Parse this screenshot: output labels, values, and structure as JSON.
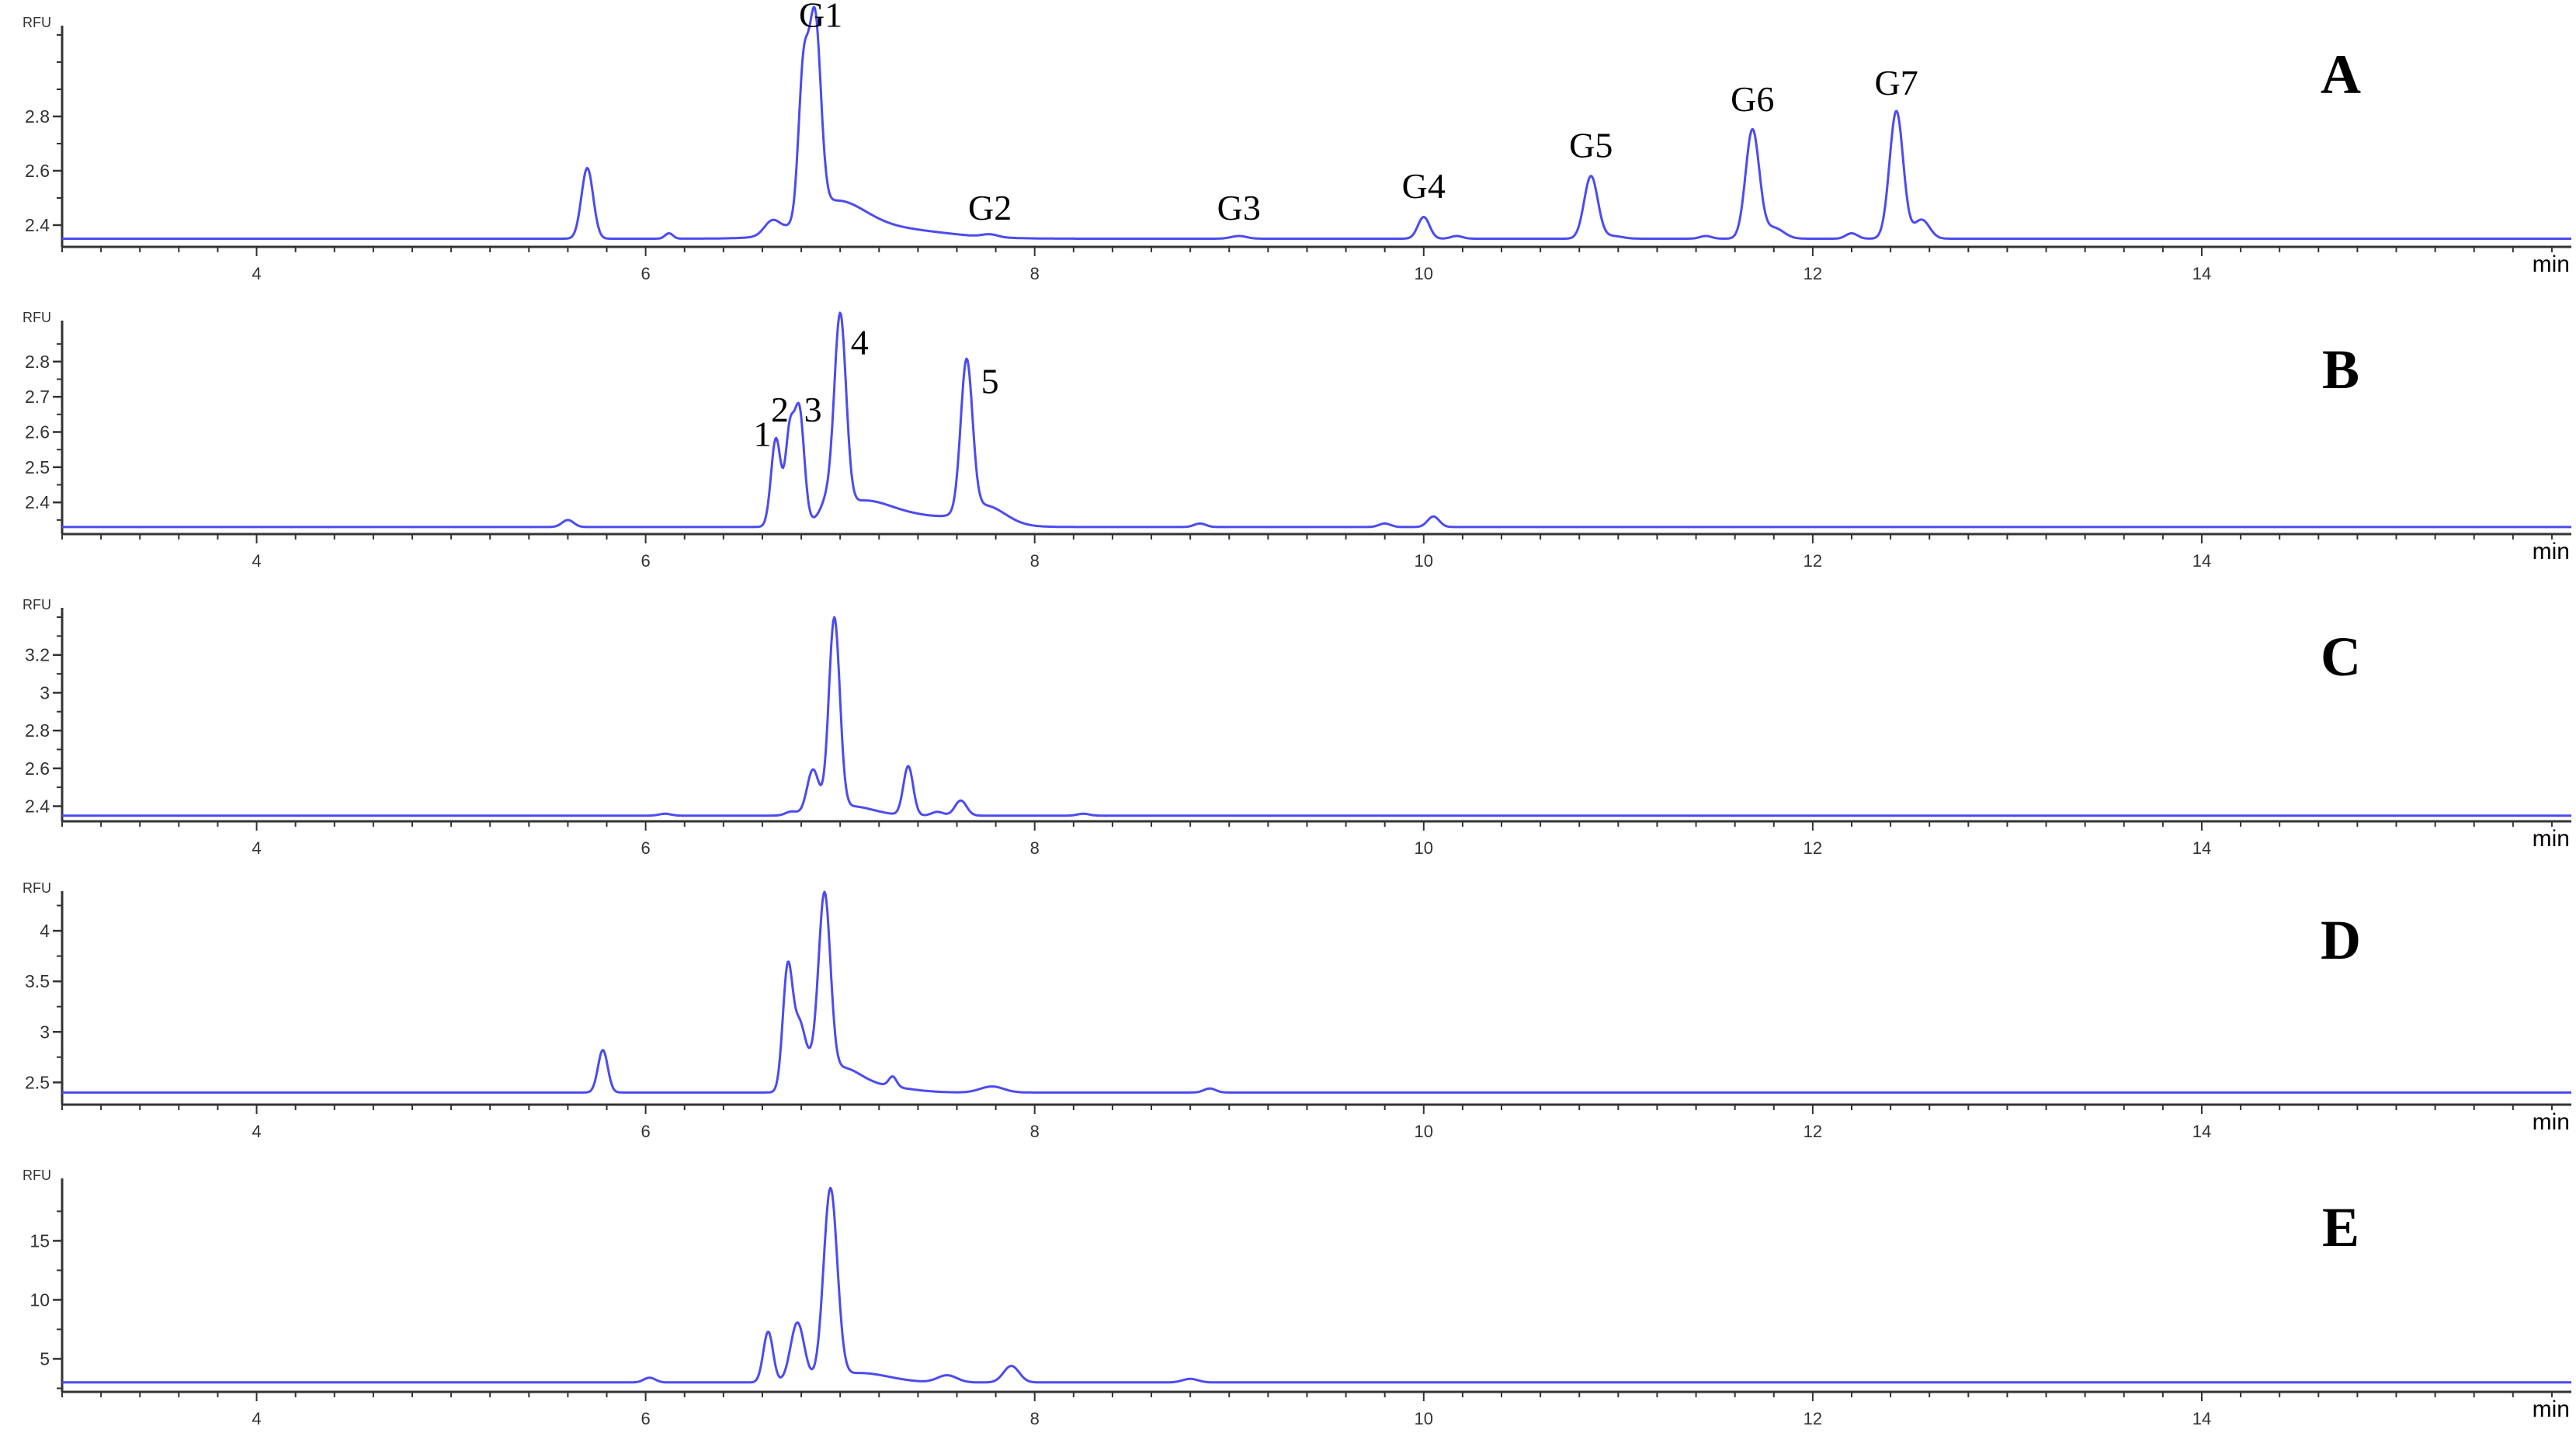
{
  "figure": {
    "line_color": "#4B4BF0",
    "axis_color": "#333333",
    "x_unit": "min",
    "y_unit": "RFU"
  },
  "chart_data": [
    {
      "panel": "A",
      "type": "line",
      "xlim": [
        3.0,
        15.9
      ],
      "ylim": [
        2.32,
        3.1
      ],
      "x_ticks": [
        4,
        6,
        8,
        10,
        12,
        14
      ],
      "y_ticks": [
        2.4,
        2.6,
        2.8
      ],
      "baseline": 2.35,
      "peaks": [
        {
          "x": 5.7,
          "y": 2.61,
          "w": 0.03
        },
        {
          "x": 6.12,
          "y": 2.37,
          "w": 0.02
        },
        {
          "x": 6.65,
          "y": 2.4,
          "w": 0.04
        },
        {
          "x": 6.81,
          "y": 2.86,
          "w": 0.025
        },
        {
          "x": 6.87,
          "y": 3.06,
          "w": 0.03
        },
        {
          "x": 6.97,
          "y": 2.46,
          "w": 0.15
        },
        {
          "x": 7.2,
          "y": 2.39,
          "w": 0.3
        },
        {
          "x": 7.77,
          "y": 2.36,
          "w": 0.04
        },
        {
          "x": 9.05,
          "y": 2.36,
          "w": 0.04
        },
        {
          "x": 10.0,
          "y": 2.43,
          "w": 0.03
        },
        {
          "x": 10.17,
          "y": 2.36,
          "w": 0.03
        },
        {
          "x": 10.86,
          "y": 2.58,
          "w": 0.035
        },
        {
          "x": 10.97,
          "y": 2.36,
          "w": 0.05
        },
        {
          "x": 11.45,
          "y": 2.36,
          "w": 0.03
        },
        {
          "x": 11.69,
          "y": 2.75,
          "w": 0.035
        },
        {
          "x": 11.8,
          "y": 2.39,
          "w": 0.05
        },
        {
          "x": 12.2,
          "y": 2.37,
          "w": 0.03
        },
        {
          "x": 12.43,
          "y": 2.82,
          "w": 0.035
        },
        {
          "x": 12.56,
          "y": 2.42,
          "w": 0.04
        }
      ],
      "annotations": [
        {
          "text": "G1",
          "x": 6.9,
          "y": 3.13
        },
        {
          "text": "G2",
          "x": 7.77,
          "y": 2.42
        },
        {
          "text": "G3",
          "x": 9.05,
          "y": 2.42
        },
        {
          "text": "G4",
          "x": 10.0,
          "y": 2.5
        },
        {
          "text": "G5",
          "x": 10.86,
          "y": 2.65
        },
        {
          "text": "G6",
          "x": 11.69,
          "y": 2.82
        },
        {
          "text": "G7",
          "x": 12.43,
          "y": 2.88
        }
      ],
      "panel_label": "A"
    },
    {
      "panel": "B",
      "type": "line",
      "xlim": [
        3.0,
        15.9
      ],
      "ylim": [
        2.31,
        2.89
      ],
      "x_ticks": [
        4,
        6,
        8,
        10,
        12,
        14
      ],
      "y_ticks": [
        2.4,
        2.5,
        2.6,
        2.7,
        2.8
      ],
      "baseline": 2.33,
      "peaks": [
        {
          "x": 5.6,
          "y": 2.35,
          "w": 0.03
        },
        {
          "x": 6.67,
          "y": 2.58,
          "w": 0.025
        },
        {
          "x": 6.74,
          "y": 2.58,
          "w": 0.022
        },
        {
          "x": 6.79,
          "y": 2.65,
          "w": 0.025
        },
        {
          "x": 6.93,
          "y": 2.37,
          "w": 0.03
        },
        {
          "x": 7.0,
          "y": 2.88,
          "w": 0.03
        },
        {
          "x": 7.1,
          "y": 2.39,
          "w": 0.15
        },
        {
          "x": 7.4,
          "y": 2.36,
          "w": 0.25
        },
        {
          "x": 7.65,
          "y": 2.76,
          "w": 0.03
        },
        {
          "x": 7.75,
          "y": 2.38,
          "w": 0.1
        },
        {
          "x": 8.85,
          "y": 2.34,
          "w": 0.03
        },
        {
          "x": 9.8,
          "y": 2.34,
          "w": 0.03
        },
        {
          "x": 10.05,
          "y": 2.36,
          "w": 0.03
        }
      ],
      "annotations": [
        {
          "text": "1",
          "x": 6.6,
          "y": 2.56
        },
        {
          "text": "2",
          "x": 6.69,
          "y": 2.63
        },
        {
          "text": "3",
          "x": 6.86,
          "y": 2.63
        },
        {
          "text": "4",
          "x": 7.1,
          "y": 2.82
        },
        {
          "text": "5",
          "x": 7.77,
          "y": 2.71
        }
      ],
      "panel_label": "B"
    },
    {
      "panel": "C",
      "type": "line",
      "xlim": [
        3.0,
        15.9
      ],
      "ylim": [
        2.32,
        3.4
      ],
      "x_ticks": [
        4,
        6,
        8,
        10,
        12,
        14
      ],
      "y_ticks": [
        2.4,
        2.6,
        2.8,
        3,
        3.2
      ],
      "baseline": 2.35,
      "peaks": [
        {
          "x": 6.1,
          "y": 2.36,
          "w": 0.03
        },
        {
          "x": 6.75,
          "y": 2.37,
          "w": 0.03
        },
        {
          "x": 6.86,
          "y": 2.58,
          "w": 0.03
        },
        {
          "x": 6.97,
          "y": 3.36,
          "w": 0.028
        },
        {
          "x": 7.05,
          "y": 2.4,
          "w": 0.12
        },
        {
          "x": 7.35,
          "y": 2.61,
          "w": 0.025
        },
        {
          "x": 7.5,
          "y": 2.37,
          "w": 0.03
        },
        {
          "x": 7.62,
          "y": 2.43,
          "w": 0.03
        },
        {
          "x": 8.25,
          "y": 2.36,
          "w": 0.03
        }
      ],
      "annotations": [],
      "panel_label": "C"
    },
    {
      "panel": "D",
      "type": "line",
      "xlim": [
        3.0,
        15.9
      ],
      "ylim": [
        2.28,
        4.3
      ],
      "x_ticks": [
        4,
        6,
        8,
        10,
        12,
        14
      ],
      "y_ticks": [
        2.5,
        3,
        3.5,
        4
      ],
      "baseline": 2.4,
      "peaks": [
        {
          "x": 5.78,
          "y": 2.82,
          "w": 0.025
        },
        {
          "x": 6.73,
          "y": 3.6,
          "w": 0.025
        },
        {
          "x": 6.79,
          "y": 3.0,
          "w": 0.03
        },
        {
          "x": 6.86,
          "y": 2.6,
          "w": 0.04
        },
        {
          "x": 6.92,
          "y": 4.15,
          "w": 0.03
        },
        {
          "x": 7.0,
          "y": 2.62,
          "w": 0.1
        },
        {
          "x": 7.2,
          "y": 2.46,
          "w": 0.15
        },
        {
          "x": 7.27,
          "y": 2.5,
          "w": 0.02
        },
        {
          "x": 7.78,
          "y": 2.46,
          "w": 0.06
        },
        {
          "x": 8.9,
          "y": 2.44,
          "w": 0.03
        }
      ],
      "annotations": [],
      "panel_label": "D"
    },
    {
      "panel": "E",
      "type": "line",
      "xlim": [
        3.0,
        15.9
      ],
      "ylim": [
        2.2,
        19.5
      ],
      "x_ticks": [
        4,
        6,
        8,
        10,
        12,
        14
      ],
      "y_ticks": [
        5,
        10,
        15
      ],
      "baseline": 3.0,
      "peaks": [
        {
          "x": 6.02,
          "y": 3.4,
          "w": 0.03
        },
        {
          "x": 6.63,
          "y": 7.3,
          "w": 0.025
        },
        {
          "x": 6.78,
          "y": 8.0,
          "w": 0.035
        },
        {
          "x": 6.95,
          "y": 19.0,
          "w": 0.035
        },
        {
          "x": 7.1,
          "y": 3.8,
          "w": 0.15
        },
        {
          "x": 7.55,
          "y": 3.6,
          "w": 0.05
        },
        {
          "x": 7.88,
          "y": 4.4,
          "w": 0.04
        },
        {
          "x": 8.8,
          "y": 3.3,
          "w": 0.04
        }
      ],
      "annotations": [],
      "panel_label": "E"
    }
  ]
}
